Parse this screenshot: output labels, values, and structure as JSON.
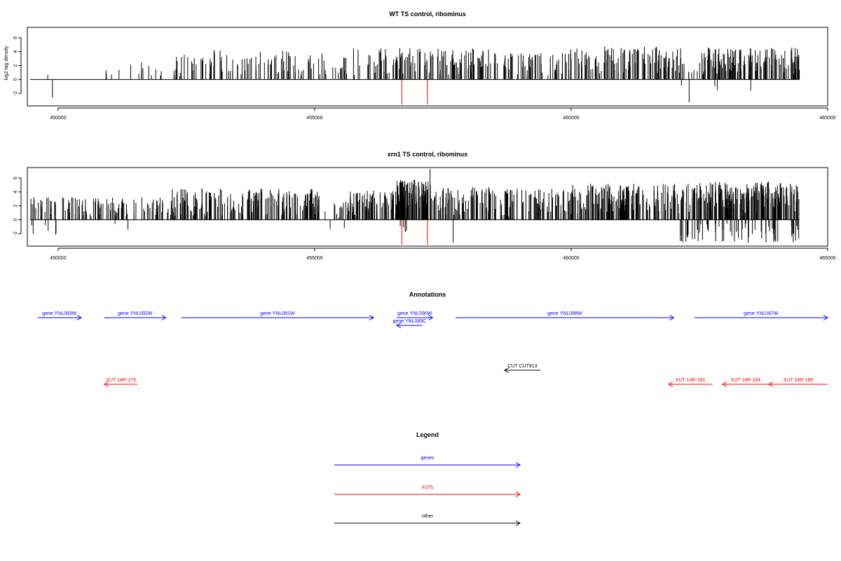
{
  "chart_data": [
    {
      "type": "bar",
      "title": "WT TS control, ribominus",
      "ylabel": "log2 tag density",
      "xlabel": "",
      "xlim": [
        449400,
        465000
      ],
      "ylim": [
        -3.8,
        7.5
      ],
      "yticks": [
        -2,
        0,
        2,
        4,
        6
      ],
      "xticks": [
        450000,
        455000,
        460000,
        465000
      ],
      "xticklabels": [
        "450000",
        "455000",
        "460000",
        "465000"
      ],
      "grid": false,
      "baseline": {
        "x_start": 449450,
        "x_end": 464450,
        "y": 0
      },
      "seed": 11,
      "density_profile": [
        {
          "from": 449450,
          "to": 450900,
          "count": 1,
          "min": 0.5,
          "max": 1.0
        },
        {
          "from": 450900,
          "to": 451300,
          "count": 4,
          "min": 0.6,
          "max": 1.5
        },
        {
          "from": 451300,
          "to": 452200,
          "count": 10,
          "min": 0.4,
          "max": 2.6
        },
        {
          "from": 452200,
          "to": 455200,
          "count": 95,
          "min": 0.4,
          "max": 4.2
        },
        {
          "from": 455200,
          "to": 455500,
          "count": 5,
          "min": 0.3,
          "max": 1.8
        },
        {
          "from": 455500,
          "to": 458400,
          "count": 130,
          "min": 0.6,
          "max": 4.5
        },
        {
          "from": 458400,
          "to": 459900,
          "count": 60,
          "min": 0.3,
          "max": 3.8
        },
        {
          "from": 459900,
          "to": 462200,
          "count": 120,
          "min": 0.6,
          "max": 4.8
        },
        {
          "from": 462200,
          "to": 462500,
          "count": 5,
          "min": 0.3,
          "max": 1.5
        },
        {
          "from": 462500,
          "to": 464450,
          "count": 150,
          "min": 0.6,
          "max": 4.6
        }
      ],
      "negative_bars": [
        {
          "x": 449890,
          "y": -2.6
        },
        {
          "x": 462150,
          "y": -0.9
        },
        {
          "x": 462300,
          "y": -3.3
        },
        {
          "x": 462800,
          "y": -1.0
        },
        {
          "x": 462850,
          "y": -1.5
        },
        {
          "x": 463500,
          "y": -1.6
        }
      ],
      "highlight_bars": [
        {
          "x": 456700,
          "y": -3.6,
          "color": "#ff0000"
        },
        {
          "x": 457200,
          "y": -3.6,
          "color": "#ff0000"
        }
      ]
    },
    {
      "type": "bar",
      "title": "xrn1 TS control, ribominus",
      "ylabel": "",
      "xlabel": "",
      "xlim": [
        449400,
        465000
      ],
      "ylim": [
        -3.8,
        7.5
      ],
      "yticks": [
        -2,
        0,
        2,
        4,
        6
      ],
      "xticks": [
        450000,
        455000,
        460000,
        465000
      ],
      "xticklabels": [
        "450000",
        "455000",
        "460000",
        "465000"
      ],
      "grid": false,
      "baseline": {
        "x_start": 449450,
        "x_end": 464450,
        "y": 0
      },
      "seed": 29,
      "density_profile": [
        {
          "from": 449450,
          "to": 452100,
          "count": 110,
          "min": 0.4,
          "max": 3.3
        },
        {
          "from": 452100,
          "to": 455200,
          "count": 210,
          "min": 0.5,
          "max": 4.5
        },
        {
          "from": 455200,
          "to": 455500,
          "count": 8,
          "min": 0.3,
          "max": 2.5
        },
        {
          "from": 455500,
          "to": 456600,
          "count": 85,
          "min": 0.6,
          "max": 4.2
        },
        {
          "from": 456600,
          "to": 457300,
          "count": 110,
          "min": 1.2,
          "max": 5.8
        },
        {
          "from": 457300,
          "to": 458400,
          "count": 70,
          "min": 0.5,
          "max": 4.8
        },
        {
          "from": 458400,
          "to": 459900,
          "count": 85,
          "min": 0.4,
          "max": 4.5
        },
        {
          "from": 459900,
          "to": 462200,
          "count": 180,
          "min": 0.6,
          "max": 5.2
        },
        {
          "from": 462200,
          "to": 464450,
          "count": 230,
          "min": 0.8,
          "max": 5.5
        }
      ],
      "extra_bars": [
        {
          "x": 457250,
          "y": 7.3
        },
        {
          "x": 449850,
          "y": 0.8
        }
      ],
      "negative_profile": [
        {
          "from": 449450,
          "to": 450000,
          "count": 6,
          "min": 0.5,
          "max": 2.8
        },
        {
          "from": 451000,
          "to": 451400,
          "count": 2,
          "min": 0.5,
          "max": 2.4
        },
        {
          "from": 454900,
          "to": 455600,
          "count": 2,
          "min": 1.0,
          "max": 2.3
        },
        {
          "from": 456600,
          "to": 456800,
          "count": 4,
          "min": 0.8,
          "max": 1.8
        },
        {
          "from": 462050,
          "to": 464450,
          "count": 70,
          "min": 0.5,
          "max": 3.3
        }
      ],
      "negative_bars": [
        {
          "x": 457700,
          "y": -3.3
        }
      ],
      "highlight_bars": [
        {
          "x": 456700,
          "y": -3.6,
          "color": "#ff0000"
        },
        {
          "x": 457200,
          "y": -3.6,
          "color": "#ff0000"
        }
      ]
    }
  ],
  "annotations": {
    "title": "Annotations",
    "xlim": [
      449400,
      465000
    ],
    "features": [
      {
        "label": "gene YNL093W",
        "start": 449600,
        "end": 450450,
        "strand": "+",
        "row": 0,
        "color": "#0000ff"
      },
      {
        "label": "gene YNL092W",
        "start": 450900,
        "end": 452100,
        "strand": "+",
        "row": 0,
        "color": "#0000ff"
      },
      {
        "label": "gene YNL091W",
        "start": 452400,
        "end": 456150,
        "strand": "+",
        "row": 0,
        "color": "#0000ff"
      },
      {
        "label": "gene YNL090W",
        "start": 456600,
        "end": 457300,
        "strand": "+",
        "row": 0,
        "color": "#0000ff"
      },
      {
        "label": "gene YNL089C",
        "start": 456600,
        "end": 457100,
        "strand": "-",
        "row": 1,
        "color": "#0000ff"
      },
      {
        "label": "gene YNL088W",
        "start": 457750,
        "end": 462000,
        "strand": "+",
        "row": 0,
        "color": "#0000ff"
      },
      {
        "label": "gene YNL087W",
        "start": 462400,
        "end": 465000,
        "strand": "+",
        "row": 0,
        "color": "#0000ff"
      },
      {
        "label": "CUT CUT813",
        "start": 458700,
        "end": 459400,
        "strand": "-",
        "row": 2,
        "color": "#000000"
      },
      {
        "label": "XUT 14R-179",
        "start": 450900,
        "end": 451550,
        "strand": "-",
        "row": 3,
        "color": "#ff0000"
      },
      {
        "label": "XUT 14R-181",
        "start": 461900,
        "end": 462750,
        "strand": "-",
        "row": 3,
        "color": "#ff0000"
      },
      {
        "label": "XUT 14R-184",
        "start": 462950,
        "end": 463850,
        "strand": "-",
        "row": 3,
        "color": "#ff0000"
      },
      {
        "label": "XUT 14R-185",
        "start": 463850,
        "end": 465000,
        "strand": "-",
        "row": 3,
        "color": "#ff0000"
      }
    ]
  },
  "legend": {
    "title": "Legend",
    "items": [
      {
        "label": "genes",
        "color": "#0000ff"
      },
      {
        "label": "XUTs",
        "color": "#ff0000"
      },
      {
        "label": "other",
        "color": "#000000"
      }
    ]
  }
}
